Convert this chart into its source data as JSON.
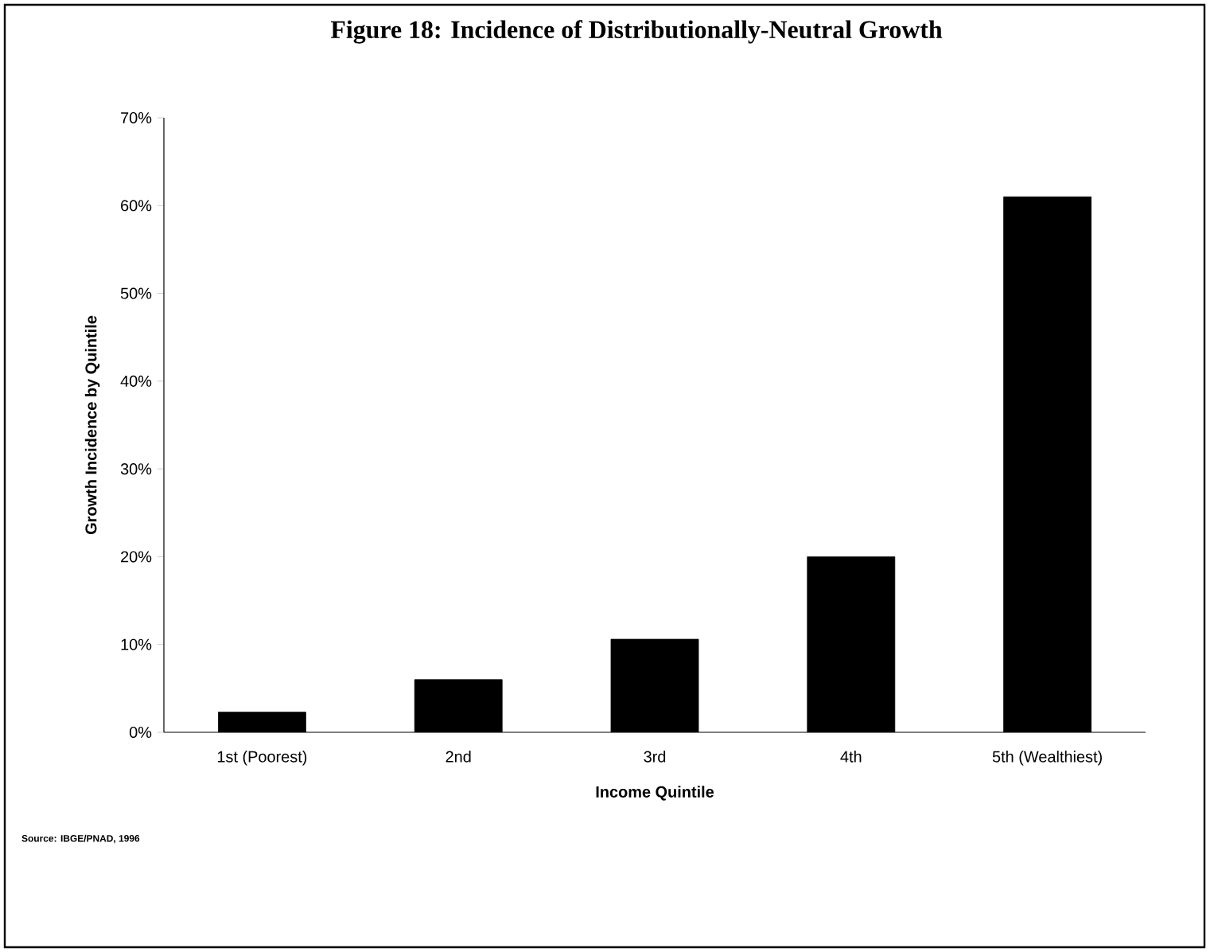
{
  "chart_data": {
    "type": "bar",
    "title": "Figure 18: Incidence of Distributionally-Neutral Growth",
    "categories": [
      "1st (Poorest)",
      "2nd",
      "3rd",
      "4th",
      "5th (Wealthiest)"
    ],
    "values": [
      2.3,
      6.0,
      10.6,
      20.0,
      61.0
    ],
    "color": "#000000",
    "xlabel": "Income Quintile",
    "ylabel": "Growth Incidence by Quintile",
    "ylim": [
      0,
      70
    ],
    "yticks": [
      {
        "value": 0,
        "label": "0%"
      },
      {
        "value": 10,
        "label": "10%"
      },
      {
        "value": 20,
        "label": "20%"
      },
      {
        "value": 30,
        "label": "30%"
      },
      {
        "value": 40,
        "label": "40%"
      },
      {
        "value": 50,
        "label": "50%"
      },
      {
        "value": 60,
        "label": "60%"
      },
      {
        "value": 70,
        "label": "70%"
      }
    ],
    "annotations": [
      "Source: IBGE/PNAD, 1996"
    ]
  }
}
